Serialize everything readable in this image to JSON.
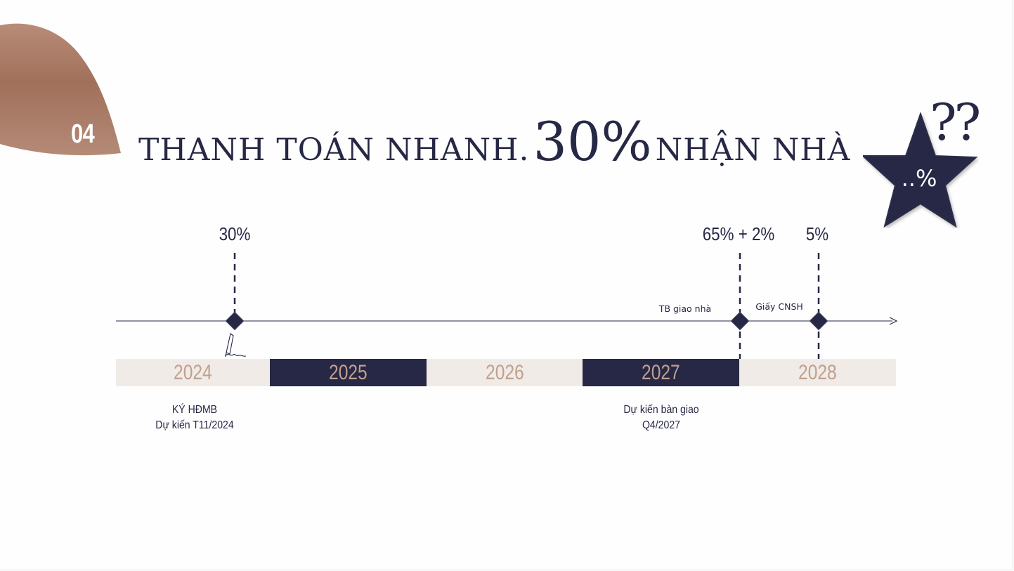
{
  "section": {
    "number": "04"
  },
  "title": {
    "part1": "THANH TOÁN NHANH.",
    "percent": "30%",
    "part2": "NHẬN NHÀ"
  },
  "badge": {
    "star_text": "..%",
    "question": "??"
  },
  "milestones": [
    {
      "percent": "30%",
      "label": "",
      "year": "2024"
    },
    {
      "percent": "65% + 2%",
      "label": "TB giao nhà",
      "year": "2027"
    },
    {
      "percent": "5%",
      "label": "Giấy CNSH",
      "year": "2028"
    }
  ],
  "years": [
    "2024",
    "2025",
    "2026",
    "2027",
    "2028"
  ],
  "notes": [
    {
      "line1": "KÝ HĐMB",
      "line2": "Dự kiến T11/2024"
    },
    {
      "line1": "Dự kiến bàn giao",
      "line2": "Q4/2027"
    }
  ],
  "colors": {
    "navy": "#262845",
    "brown": "#a87a62",
    "year_light_bg": "#f0ebe6",
    "year_text": "#c0a08f"
  },
  "icons": {
    "signature": "signature-icon",
    "star": "star-icon",
    "arrow": "arrow-right-icon"
  }
}
